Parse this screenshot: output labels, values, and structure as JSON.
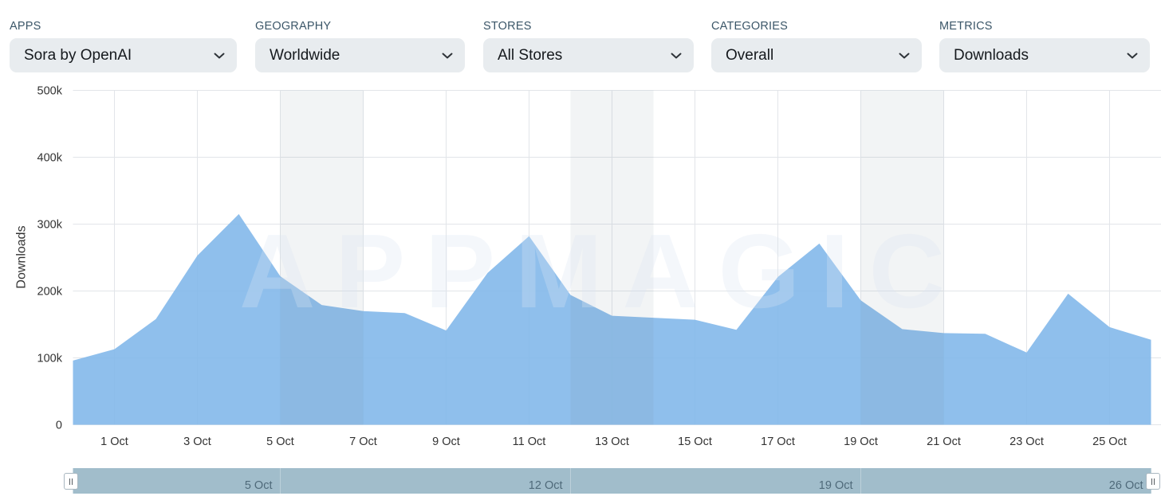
{
  "filters": [
    {
      "label": "APPS",
      "value": "Sora by OpenAI"
    },
    {
      "label": "GEOGRAPHY",
      "value": "Worldwide"
    },
    {
      "label": "STORES",
      "value": "All Stores"
    },
    {
      "label": "CATEGORIES",
      "value": "Overall"
    },
    {
      "label": "METRICS",
      "value": "Downloads"
    }
  ],
  "icons": {
    "dropdown": "chevron-down-icon",
    "range_handle": "grip-icon"
  },
  "chart_data": {
    "type": "area",
    "xlabel": "",
    "ylabel": "Downloads",
    "ylim": [
      0,
      500000
    ],
    "y_ticks": [
      {
        "value": 0,
        "label": "0"
      },
      {
        "value": 100000,
        "label": "100k"
      },
      {
        "value": 200000,
        "label": "200k"
      },
      {
        "value": 300000,
        "label": "300k"
      },
      {
        "value": 400000,
        "label": "400k"
      },
      {
        "value": 500000,
        "label": "500k"
      }
    ],
    "x": [
      "30 Sep",
      "1 Oct",
      "2 Oct",
      "3 Oct",
      "4 Oct",
      "5 Oct",
      "6 Oct",
      "7 Oct",
      "8 Oct",
      "9 Oct",
      "10 Oct",
      "11 Oct",
      "12 Oct",
      "13 Oct",
      "14 Oct",
      "15 Oct",
      "16 Oct",
      "17 Oct",
      "18 Oct",
      "19 Oct",
      "20 Oct",
      "21 Oct",
      "22 Oct",
      "23 Oct",
      "24 Oct",
      "25 Oct",
      "26 Oct"
    ],
    "x_ticks": [
      "1 Oct",
      "3 Oct",
      "5 Oct",
      "7 Oct",
      "9 Oct",
      "11 Oct",
      "13 Oct",
      "15 Oct",
      "17 Oct",
      "19 Oct",
      "21 Oct",
      "23 Oct",
      "25 Oct"
    ],
    "series": [
      {
        "values": [
          96000,
          113000,
          158000,
          253000,
          315000,
          222000,
          179000,
          170000,
          167000,
          141000,
          227000,
          282000,
          194000,
          163000,
          160000,
          157000,
          142000,
          221000,
          271000,
          186000,
          143000,
          137000,
          136000,
          108000,
          196000,
          146000,
          127000
        ]
      }
    ],
    "highlight_ranges": [
      [
        "5 Oct",
        "7 Oct"
      ],
      [
        "12 Oct",
        "14 Oct"
      ],
      [
        "19 Oct",
        "21 Oct"
      ]
    ],
    "grid": true,
    "legend": "none",
    "colors": {
      "area": "#83b8ea",
      "band": "#6f8090",
      "grid": "#e2e5e9"
    }
  },
  "watermark": "APPMAGIC",
  "navigator": {
    "labels": [
      "5 Oct",
      "12 Oct",
      "19 Oct",
      "26 Oct"
    ],
    "color": "#a1bdcb",
    "line_color": "#bcd0da"
  }
}
